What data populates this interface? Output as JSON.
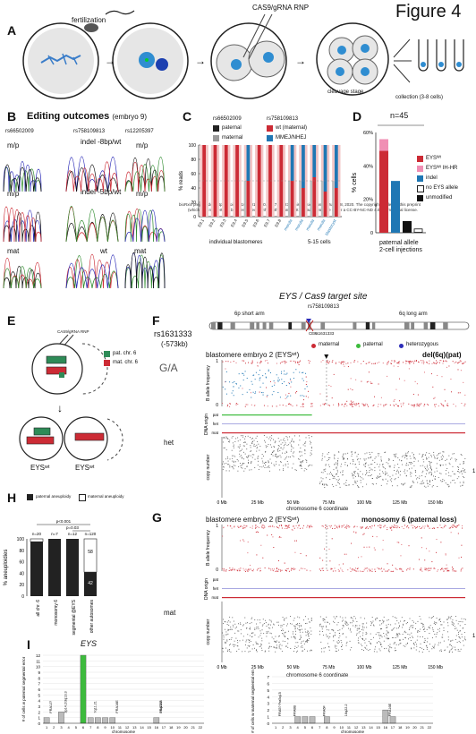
{
  "figure_title": "Figure 4",
  "colors": {
    "red": "#cc2b35",
    "pink": "#f08fb4",
    "blue": "#1f77b4",
    "grey": "#9a9a9a",
    "dark": "#222222",
    "light_pink": "#f3c6c6",
    "green": "#3dbb3d"
  },
  "panel_a": {
    "label": "A",
    "fertilization": "fertilization",
    "cas9": "CAS9/gRNA RNP",
    "cleavage": "cleavage stage",
    "collection": "collection (3-8 cells)"
  },
  "panel_b": {
    "label": "B",
    "title": "Editing outcomes",
    "subtitle": "(embryo 9)",
    "snp1": "rs66502009",
    "snp2": "rs758109813",
    "snp3": "rs12205397",
    "row1_left": "m/p",
    "row1_mid": "indel -8bp/wt",
    "row1_right": "m/p",
    "row2_left": "m/p",
    "row2_mid": "indel -5bp/wt",
    "row2_right": "m/p",
    "row3_left": "mat",
    "row3_mid": "wt",
    "row3_right": "mat"
  },
  "watermark": {
    "line1": "bioRxiv preprint doi: https://doi.org/10.1101/2020.06.17.149237; this version posted June 18, 2020. The copyright holder for this preprint",
    "line2": "(which was not certified by peer review) is the author/funder. It is made available under a CC-BY-NC-ND 4.0 International license."
  },
  "panel_c": {
    "label": "C",
    "legend_snp1": "rs66502009",
    "legend_snp2": "rs758109813",
    "legend": [
      "paternal",
      "maternal",
      "wt (maternal)",
      "MMEJ/NHEJ"
    ],
    "ylabel": "% reads",
    "yticks": [
      "0",
      "20",
      "40",
      "60",
      "80",
      "100"
    ],
    "xlabels": [
      "E9.1",
      "E9.2",
      "E9.3",
      "E9.4",
      "E9.5",
      "E9.6",
      "E9.7",
      "E9.8",
      "morula",
      "morula",
      "morula",
      "morula",
      "blastocyst"
    ],
    "group1": "individual blastomeres",
    "group2": "5-15 cells"
  },
  "panel_d": {
    "label": "D",
    "n": "n=45",
    "ylabel": "% cells",
    "yticks": [
      "0",
      "20%",
      "40%",
      "60%"
    ],
    "legend": [
      "EYSᵂᵗ",
      "EYSᵂᵗ IH-HR",
      "indel",
      "no EYS allele",
      "unmodified"
    ],
    "xlabel1": "paternal allele",
    "xlabel2": "2-cell injections"
  },
  "panel_e": {
    "label": "E",
    "rnp": "CAS9/gRNA RNP",
    "legend_pat": "pat. chr. 6",
    "legend_mat": "mat. chr. 6",
    "cell1": "EYSʷᵗ",
    "cell2": "EYSʷᵗ"
  },
  "panel_f": {
    "label": "F",
    "gene_title": "EYS / Cas9 target site",
    "snp_left": "rs1631333",
    "snp_left_sub": "(-573kb)",
    "snp_top": "rs758109813",
    "snp_cen": "rs1631333",
    "short_arm": "6p short arm",
    "long_arm": "6q long arm",
    "cen": "CEN",
    "ga": "G/A",
    "het": "het",
    "key": [
      "maternal",
      "paternal",
      "heterozygous"
    ],
    "embryo": "blastomere embryo 2 (EYSʷᵗ)",
    "call": "del(6q)(pat)",
    "baf_label": "B allele frequency",
    "dna_label": "DNA origin",
    "cn_label": "copy number",
    "pat": "pat",
    "het_row": "het",
    "mat": "mat",
    "x_ticks": [
      "0 Mb",
      "25 Mb",
      "50 Mb",
      "75 Mb",
      "100 Mb",
      "125 Mb",
      "150 Mb"
    ],
    "xlabel": "chromosome 6 coordinate",
    "y_baf": [
      "1",
      "0.5",
      "0"
    ],
    "cn_side": "1"
  },
  "panel_g": {
    "label": "G",
    "mat": "mat",
    "embryo": "blastomere embryo 2 (EYSʷᵗ)",
    "call": "monosomy 6 (paternal loss)",
    "baf_label": "B allele frequency",
    "dna_label": "DNA origin",
    "cn_label": "copy number",
    "x_ticks": [
      "0 Mb",
      "25 Mb",
      "50 Mb",
      "75 Mb",
      "100 Mb",
      "125 Mb",
      "150 Mb"
    ],
    "xlabel": "chromosome 6 coordinate",
    "cn_side": "1"
  },
  "panel_h": {
    "label": "H",
    "legend": [
      "paternal aneuploidy",
      "maternal aneuploidy"
    ],
    "ylabel": "% aneuploidies",
    "pvals": [
      "p<0.001",
      "p=0.03"
    ],
    "ns": [
      "n=20",
      "n=7",
      "n=12",
      "n=120"
    ],
    "xlabels": [
      "all chr. 6",
      "monosomy 6",
      "segmental @EYS",
      "other autosomes"
    ],
    "annot1": "58",
    "annot2": "42"
  },
  "panel_i": {
    "label": "I",
    "gene": "EYS",
    "left_ylabel": "# of cells w paternal segmental error",
    "right_ylabel": "# of cells w maternal segmental error",
    "xlabel": "chromosome",
    "left_annots": [
      "FRA1J?",
      "7q11.21",
      "3p14.2/3q13.3",
      "FRA16E",
      "FRA16B",
      "16q22.2"
    ],
    "right_annots": [
      "FRA5? Fra5q15",
      "FRA6F",
      "FRA8B",
      "16q22.2",
      "FRA16E"
    ]
  },
  "chart_data": [
    {
      "type": "bar",
      "title": "",
      "ylabel": "% reads",
      "ylim": [
        0,
        100
      ],
      "categories": [
        "E9.1",
        "E9.2",
        "E9.3",
        "E9.4",
        "E9.5",
        "E9.6",
        "E9.7",
        "E9.8",
        "morula",
        "morula",
        "morula",
        "morula",
        "blastocyst"
      ],
      "series": [
        {
          "name": "paternal",
          "values": [
            100,
            100,
            100,
            100,
            50,
            100,
            100,
            100,
            50,
            50,
            50,
            50,
            50
          ]
        },
        {
          "name": "maternal",
          "values": [
            0,
            0,
            0,
            0,
            50,
            0,
            0,
            0,
            50,
            50,
            50,
            50,
            50
          ]
        },
        {
          "name": "wt (maternal)",
          "values": [
            100,
            100,
            100,
            100,
            50,
            100,
            100,
            100,
            50,
            40,
            55,
            35,
            40
          ]
        },
        {
          "name": "MMEJ/NHEJ",
          "values": [
            0,
            0,
            0,
            0,
            50,
            0,
            0,
            0,
            50,
            60,
            45,
            65,
            60
          ]
        }
      ]
    },
    {
      "type": "bar",
      "title": "",
      "ylabel": "% cells",
      "ylim": [
        0,
        60
      ],
      "categories": [
        "EYSᵂᵗ",
        "indel",
        "no EYS allele",
        "unmodified"
      ],
      "series": [
        {
          "name": "EYSᵂᵗ",
          "values": [
            49,
            0,
            0,
            0
          ]
        },
        {
          "name": "EYSᵂᵗ IH-HR",
          "values": [
            7,
            0,
            0,
            0
          ]
        },
        {
          "name": "indel",
          "values": [
            0,
            31,
            0,
            0
          ]
        },
        {
          "name": "no EYS allele",
          "values": [
            0,
            0,
            7,
            0
          ]
        },
        {
          "name": "unmodified",
          "values": [
            0,
            0,
            0,
            2
          ]
        }
      ]
    },
    {
      "type": "bar",
      "title": "",
      "ylabel": "% aneuploidies",
      "ylim": [
        0,
        100
      ],
      "categories": [
        "all chr. 6",
        "monosomy 6",
        "segmental @EYS",
        "other autosomes"
      ],
      "series": [
        {
          "name": "paternal aneuploidy",
          "values": [
            95,
            100,
            100,
            42
          ]
        },
        {
          "name": "maternal aneuploidy",
          "values": [
            5,
            0,
            0,
            58
          ]
        }
      ]
    },
    {
      "type": "bar",
      "title": "",
      "ylabel": "# of cells w paternal segmental error",
      "xlabel": "chromosome",
      "ylim": [
        0,
        12
      ],
      "categories": [
        "1",
        "2",
        "3",
        "4",
        "5",
        "6",
        "7",
        "8",
        "9",
        "10",
        "11",
        "12",
        "13",
        "14",
        "15",
        "16",
        "17",
        "18",
        "19",
        "20",
        "21",
        "22"
      ],
      "values": [
        1,
        0,
        2,
        0,
        0,
        12,
        1,
        1,
        1,
        1,
        0,
        0,
        0,
        0,
        0,
        1,
        0,
        0,
        0,
        0,
        0,
        0
      ]
    },
    {
      "type": "bar",
      "title": "",
      "ylabel": "# of cells w maternal segmental error",
      "xlabel": "chromosome",
      "ylim": [
        0,
        7
      ],
      "categories": [
        "1",
        "2",
        "3",
        "4",
        "5",
        "6",
        "7",
        "8",
        "9",
        "10",
        "11",
        "12",
        "13",
        "14",
        "15",
        "16",
        "17",
        "18",
        "19",
        "20",
        "21",
        "22"
      ],
      "values": [
        0,
        0,
        0,
        1,
        1,
        1,
        0,
        1,
        0,
        0,
        0,
        0,
        0,
        0,
        0,
        2,
        1,
        0,
        0,
        0,
        0,
        0
      ]
    }
  ]
}
